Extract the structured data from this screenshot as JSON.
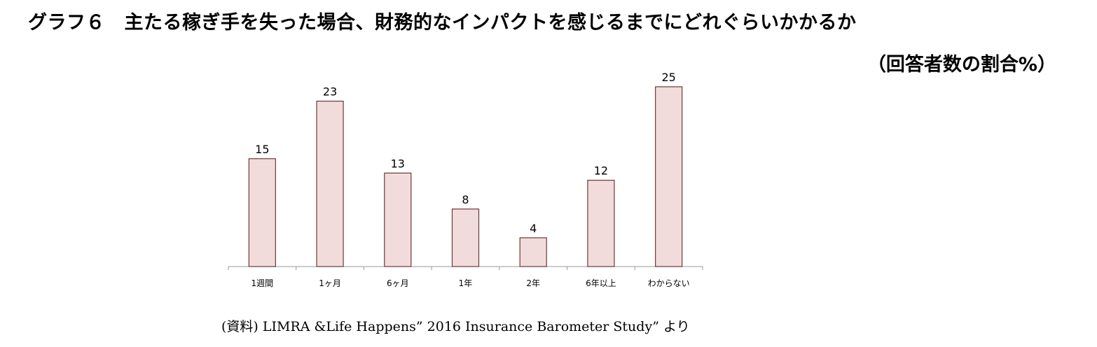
{
  "header": {
    "title": "グラフ６　主たる稼ぎ手を失った場合、財務的なインパクトを感じるまでにどれぐらいかかるか",
    "unit_note": "（回答者数の割合%）"
  },
  "footer": {
    "source": "(資料) LIMRA &Life Happens” 2016 Insurance Barometer Study” より"
  },
  "chart_data": {
    "type": "bar",
    "title": "グラフ６　主たる稼ぎ手を失った場合、財務的なインパクトを感じるまでにどれぐらいかかるか",
    "categories": [
      "1週間",
      "1ヶ月",
      "6ヶ月",
      "1年",
      "2年",
      "6年以上",
      "わからない"
    ],
    "values": [
      15,
      23,
      13,
      8,
      4,
      12,
      25
    ],
    "ylim": [
      0,
      25
    ],
    "grid": false,
    "legend": "none",
    "colors": {
      "bar_fill": "#f2dcdb",
      "bar_stroke": "#6b3a36"
    }
  }
}
